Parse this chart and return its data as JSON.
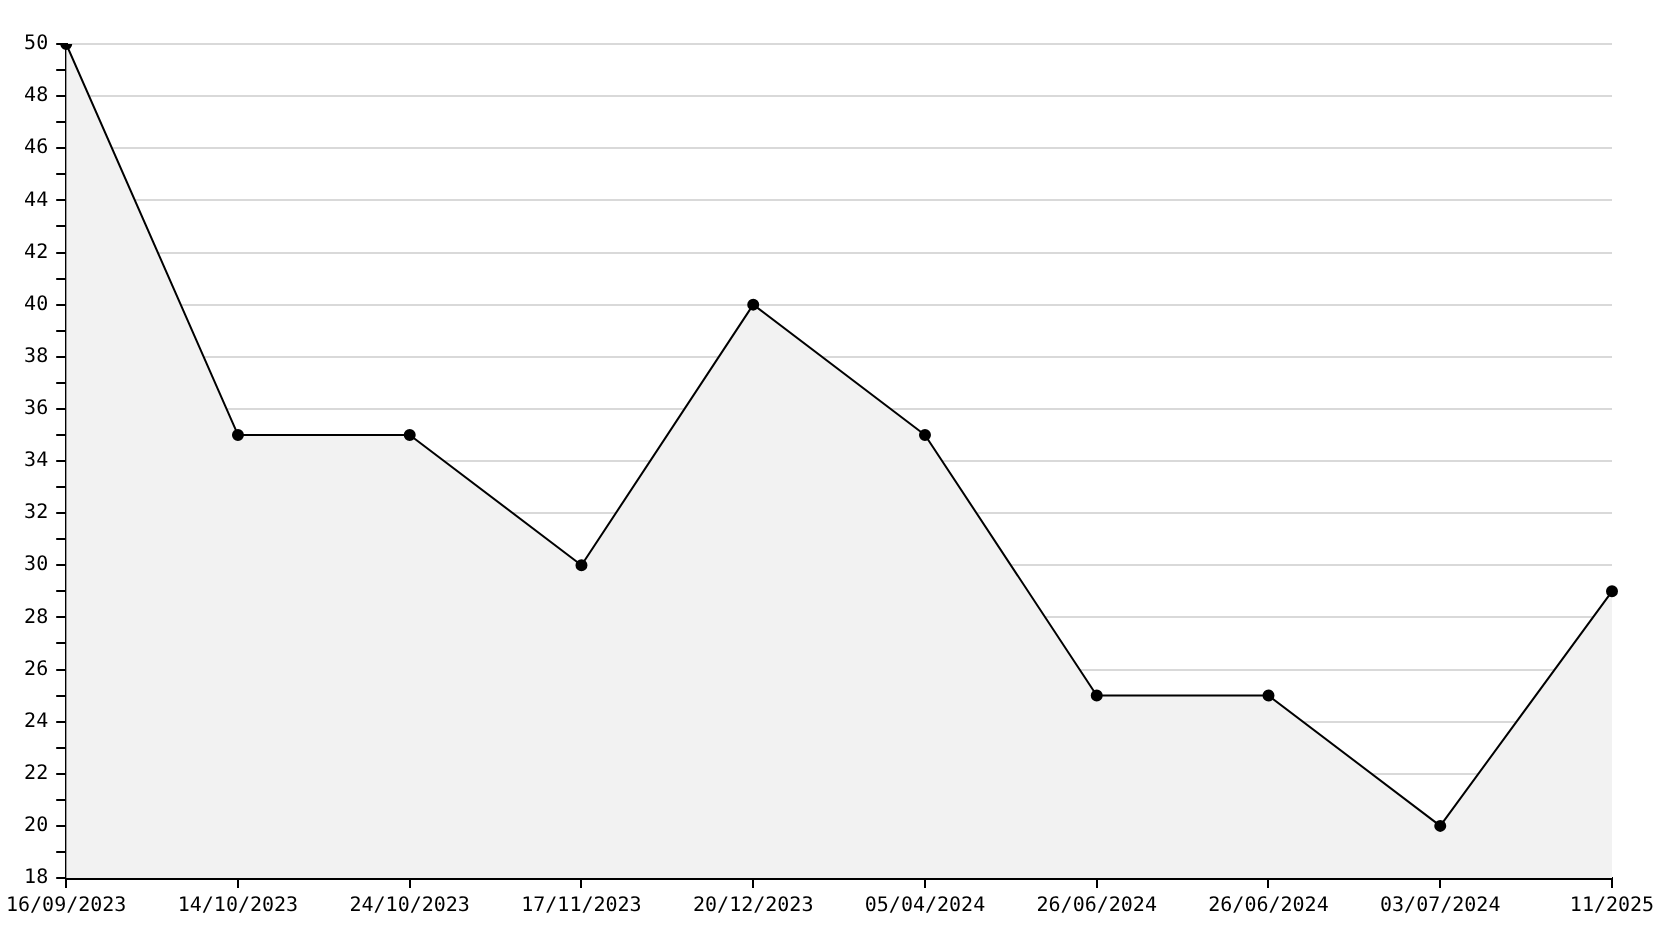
{
  "chart_data": {
    "type": "area",
    "categories": [
      "16/09/2023",
      "14/10/2023",
      "24/10/2023",
      "17/11/2023",
      "20/12/2023",
      "05/04/2024",
      "26/06/2024",
      "26/06/2024",
      "03/07/2024",
      "11/2025"
    ],
    "series": [
      {
        "color": "#000000",
        "values": [
          50,
          35,
          35,
          30,
          40,
          35,
          25,
          25,
          20,
          29
        ]
      }
    ],
    "ylim": [
      18,
      50
    ],
    "yticks": [
      18,
      {
        "value": 19,
        "label": null
      },
      20,
      {
        "value": 21,
        "label": null
      },
      22,
      {
        "value": 23,
        "label": null
      },
      24,
      {
        "value": 25,
        "label": null
      },
      26,
      {
        "value": 27,
        "label": null
      },
      28,
      {
        "value": 29,
        "label": null
      },
      30,
      {
        "value": 31,
        "label": null
      },
      32,
      {
        "value": 33,
        "label": null
      },
      34,
      {
        "value": 35,
        "label": null
      },
      36,
      {
        "value": 37,
        "label": null
      },
      38,
      {
        "value": 39,
        "label": null
      },
      40,
      {
        "value": 41,
        "label": null
      },
      42,
      {
        "value": 43,
        "label": null
      },
      44,
      {
        "value": 45,
        "label": null
      },
      46,
      {
        "value": 47,
        "label": null
      },
      48,
      {
        "value": 49,
        "label": null
      },
      50
    ],
    "grid": "y",
    "legend": false,
    "marker": "circle",
    "line_style": "solid"
  }
}
